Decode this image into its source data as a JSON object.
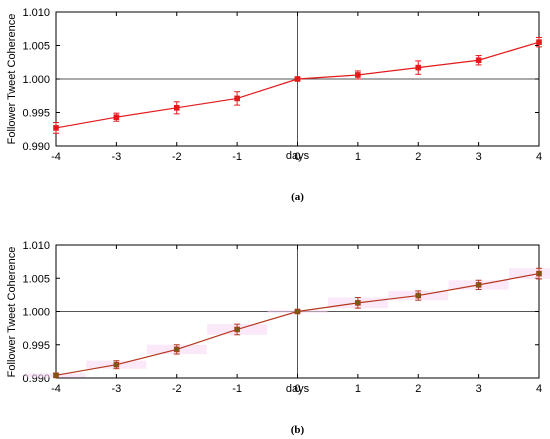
{
  "chart_data": [
    {
      "type": "line",
      "panel_label": "(a)",
      "xlabel": "days",
      "ylabel": "Follower Tweet Coherence",
      "xlim": [
        -4,
        4
      ],
      "ylim": [
        0.99,
        1.01
      ],
      "x_ticks": [
        "-4",
        "-3",
        "-2",
        "-1",
        "0",
        "1",
        "2",
        "3",
        "4"
      ],
      "y_ticks": [
        "0.990",
        "0.995",
        "1.000",
        "1.005",
        "1.010"
      ],
      "reference_lines": {
        "x": 0,
        "y": 1.0
      },
      "color": "#e31a1c",
      "series": [
        {
          "x": [
            -4,
            -3,
            -2,
            -1,
            0,
            1,
            2,
            3,
            4
          ],
          "values": [
            0.9927,
            0.9943,
            0.9957,
            0.9971,
            1.0,
            1.0006,
            1.0017,
            1.0028,
            1.0055
          ],
          "errors": [
            0.0008,
            0.0006,
            0.0009,
            0.001,
            0.0002,
            0.0006,
            0.001,
            0.0007,
            0.0007
          ]
        }
      ]
    },
    {
      "type": "line",
      "panel_label": "(b)",
      "xlabel": "days",
      "ylabel": "Follower Tweet Coherence",
      "xlim": [
        -4,
        4
      ],
      "ylim": [
        0.99,
        1.01
      ],
      "x_ticks": [
        "-4",
        "-3",
        "-2",
        "-1",
        "0",
        "1",
        "2",
        "3",
        "4"
      ],
      "y_ticks": [
        "0.990",
        "0.995",
        "1.000",
        "1.005",
        "1.010"
      ],
      "reference_lines": {
        "x": 0,
        "y": 1.0
      },
      "color": "#b5371f",
      "marker_color": "#7a5a12",
      "band_color": "#f7d6f2",
      "series": [
        {
          "x": [
            -4,
            -3,
            -2,
            -1,
            0,
            1,
            2,
            3,
            4
          ],
          "values": [
            0.9904,
            0.992,
            0.9943,
            0.9973,
            1.0,
            1.0013,
            1.0024,
            1.004,
            1.0057
          ],
          "errors": [
            0.0003,
            0.0006,
            0.0007,
            0.0008,
            0.0002,
            0.0008,
            0.0007,
            0.0007,
            0.0008
          ]
        }
      ]
    }
  ]
}
